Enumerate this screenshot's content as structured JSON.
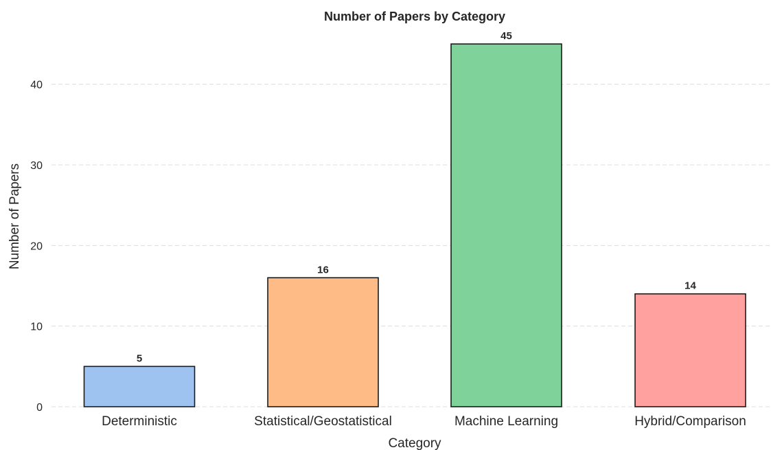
{
  "chart_data": {
    "type": "bar",
    "title": "Number of Papers by Category",
    "xlabel": "Category",
    "ylabel": "Number of Papers",
    "categories": [
      "Deterministic",
      "Statistical/Geostatistical",
      "Machine Learning",
      "Hybrid/Comparison"
    ],
    "values": [
      5,
      16,
      45,
      14
    ],
    "data_labels": [
      "5",
      "16",
      "45",
      "14"
    ],
    "colors": [
      "#9ec3f0",
      "#ffbb85",
      "#7fd299",
      "#ffa19e"
    ],
    "ylim": [
      0,
      47.3
    ],
    "yticks": [
      0,
      10,
      20,
      30,
      40
    ],
    "ytick_labels": [
      "0",
      "10",
      "20",
      "30",
      "40"
    ],
    "grid": "horizontal-dashed",
    "legend": "none"
  }
}
